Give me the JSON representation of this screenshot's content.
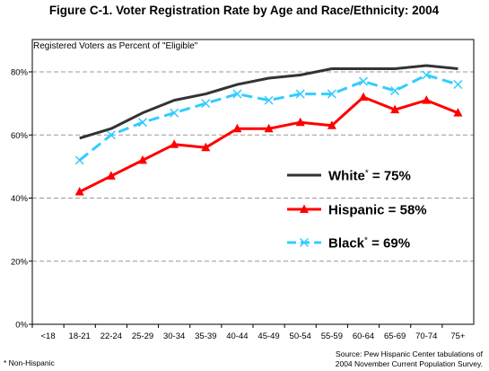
{
  "chart_data": {
    "type": "line",
    "title": "Figure C-1.  Voter Registration Rate by Age and Race/Ethnicity: 2004",
    "ylabel": "Registered Voters as Percent of \"Eligible\"",
    "xlabel": "",
    "ylim": [
      0,
      90
    ],
    "yticks": [
      "0%",
      "20%",
      "40%",
      "60%",
      "80%"
    ],
    "categories": [
      "<18",
      "18-21",
      "22-24",
      "25-29",
      "30-34",
      "35-39",
      "40-44",
      "45-49",
      "50-54",
      "55-59",
      "60-64",
      "65-69",
      "70-74",
      "75+"
    ],
    "grid": "horizontal dashed",
    "legend_position": "center-right",
    "series": [
      {
        "name": "White* = 75%",
        "legend_main": "White",
        "legend_sup": "*",
        "legend_rest": " = 75%",
        "color": "#333333",
        "style": "solid",
        "marker": "none",
        "values": [
          null,
          59,
          62,
          67,
          71,
          73,
          76,
          78,
          79,
          81,
          81,
          81,
          82,
          81
        ]
      },
      {
        "name": "Hispanic = 58%",
        "legend_main": "Hispanic = 58%",
        "legend_sup": "",
        "legend_rest": "",
        "color": "#ff0000",
        "style": "solid",
        "marker": "triangle",
        "values": [
          null,
          42,
          47,
          52,
          57,
          56,
          62,
          62,
          64,
          63,
          72,
          68,
          71,
          67
        ]
      },
      {
        "name": "Black* = 69%",
        "legend_main": "Black",
        "legend_sup": "*",
        "legend_rest": " = 69%",
        "color": "#33ccff",
        "style": "dashed",
        "marker": "x",
        "values": [
          null,
          52,
          60,
          64,
          67,
          70,
          73,
          71,
          73,
          73,
          77,
          74,
          79,
          76
        ]
      }
    ]
  },
  "footnote": "* Non-Hispanic",
  "source_line1": "Source:  Pew Hispanic Center tabulations of",
  "source_line2": "2004 November Current Population Survey."
}
